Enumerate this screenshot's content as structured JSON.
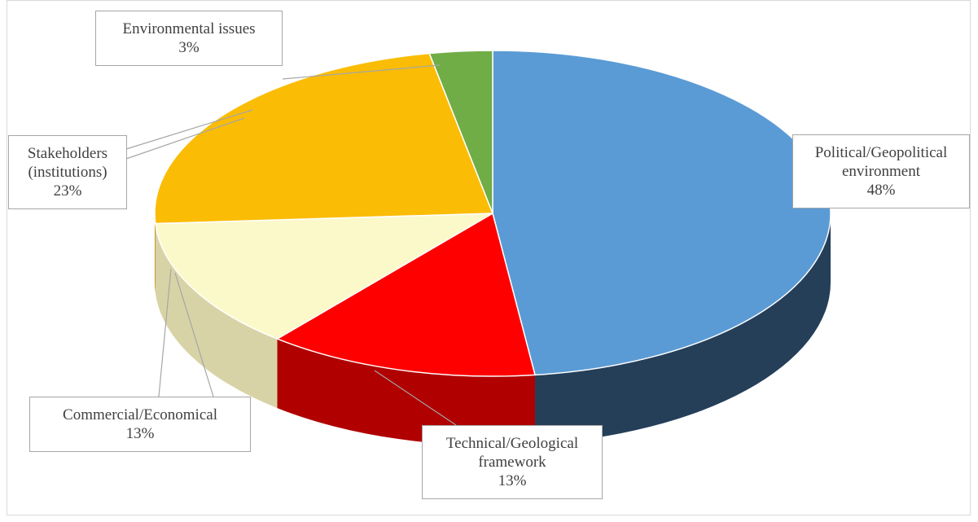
{
  "chart_data": {
    "type": "pie",
    "categories": [
      "Political/Geopolitical environment",
      "Technical/Geological framework",
      "Commercial/Economical",
      "Stakeholders (institutions)",
      "Environmental issues"
    ],
    "values": [
      48,
      13,
      13,
      23,
      3
    ],
    "value_labels": [
      "48%",
      "13%",
      "13%",
      "23%",
      "3%"
    ],
    "colors": [
      "#5b9bd5",
      "#ff0000",
      "#fbf9c9",
      "#fbbc05",
      "#70ad47"
    ],
    "side_colors": [
      "#253f59",
      "#b00000",
      "#d8d3a6",
      "#b88a00",
      "#4f7d32"
    ]
  }
}
